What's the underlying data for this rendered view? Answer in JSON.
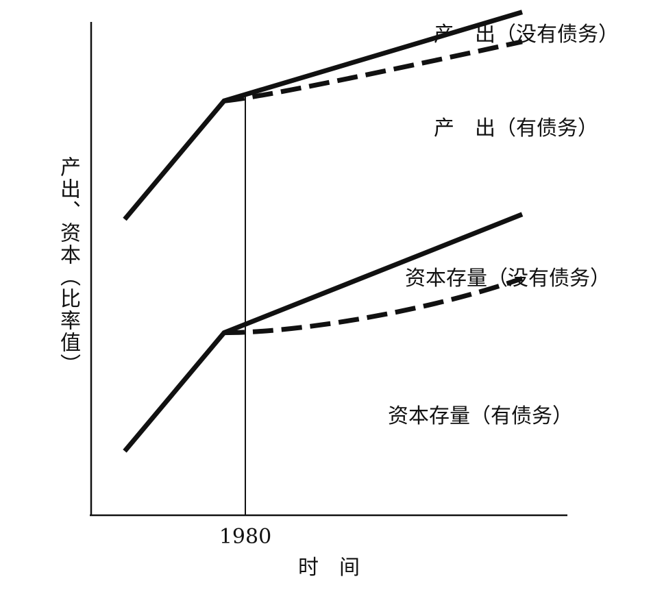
{
  "chart_data": {
    "type": "line",
    "xlabel": "时　间",
    "ylabel": "产出、资本（比率值）",
    "x_ticks": [
      1980
    ],
    "axis": {
      "x": "time",
      "y": "ratio",
      "grid": false,
      "legend": "none (inline labels)"
    },
    "marker_year": 1980,
    "series": [
      {
        "name": "产　出（没有债务）",
        "style": "solid",
        "points": [
          [
            0,
            0.6
          ],
          [
            1,
            0.84
          ],
          [
            4,
            1.02
          ]
        ]
      },
      {
        "name": "产　出（有债务）",
        "style": "dashed",
        "points": [
          [
            1,
            0.84
          ],
          [
            1.3,
            0.845
          ],
          [
            2.4,
            0.89
          ],
          [
            4,
            0.96
          ]
        ]
      },
      {
        "name": "资本存量（没有债务）",
        "style": "solid",
        "points": [
          [
            0,
            0.13
          ],
          [
            1,
            0.37
          ],
          [
            4,
            0.61
          ]
        ]
      },
      {
        "name": "资本存量（有债务）",
        "style": "dashed",
        "points": [
          [
            1,
            0.37
          ],
          [
            1.7,
            0.37
          ],
          [
            3,
            0.41
          ],
          [
            4,
            0.48
          ]
        ]
      }
    ]
  }
}
